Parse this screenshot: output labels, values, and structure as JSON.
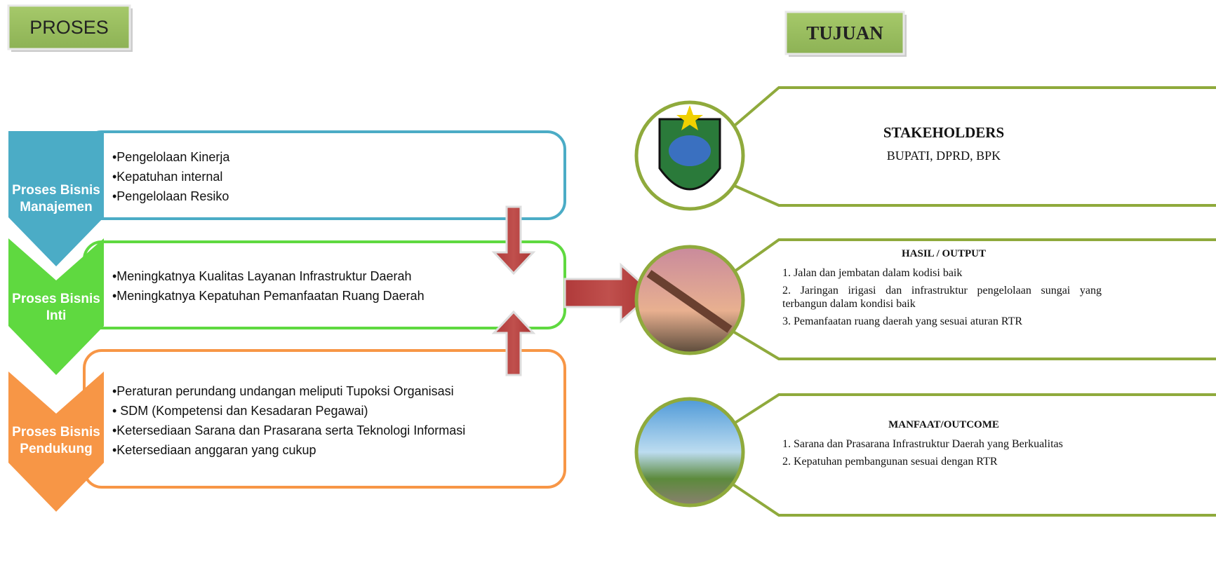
{
  "header": {
    "left": "PROSES",
    "right": "TUJUAN"
  },
  "processes": [
    {
      "label_lines": [
        "Proses Bisnis",
        "Manajemen"
      ],
      "items": [
        "•Pengelolaan Kinerja",
        "•Kepatuhan internal",
        "•Pengelolaan Resiko"
      ]
    },
    {
      "label_lines": [
        "Proses Bisnis",
        "Inti"
      ],
      "items": [
        "•Meningkatnya Kualitas Layanan Infrastruktur Daerah",
        "•Meningkatnya Kepatuhan Pemanfaatan Ruang Daerah"
      ]
    },
    {
      "label_lines": [
        "Proses Bisnis",
        "Pendukung"
      ],
      "items": [
        "•Peraturan perundang undangan meliputi Tupoksi Organisasi",
        "• SDM (Kompetensi dan Kesadaran Pegawai)",
        "•Ketersediaan Sarana dan Prasarana serta Teknologi Informasi",
        "•Ketersediaan anggaran yang cukup"
      ]
    }
  ],
  "goals": [
    {
      "title": "STAKEHOLDERS",
      "items": [
        "BUPATI, DPRD, BPK"
      ]
    },
    {
      "title": "HASIL / OUTPUT",
      "items": [
        "1. Jalan dan jembatan dalam kodisi baik",
        "2. Jaringan irigasi dan infrastruktur pengelolaan sungai yang terbangun dalam kondisi baik",
        "3. Pemanfaatan ruang daerah yang  sesuai  aturan RTR"
      ]
    },
    {
      "title": "MANFAAT/OUTCOME",
      "items": [
        "1. Sarana dan Prasarana Infrastruktur Daerah  yang Berkualitas",
        "2. Kepatuhan pembangunan sesuai dengan RTR"
      ]
    }
  ]
}
